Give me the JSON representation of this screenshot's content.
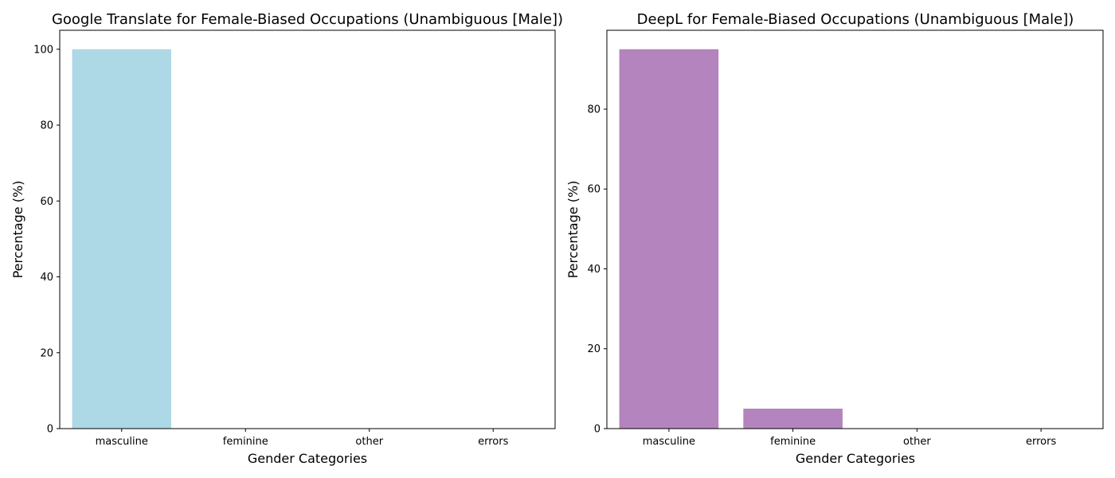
{
  "chart_data": [
    {
      "type": "bar",
      "title": "Google Translate for Female-Biased Occupations (Unambiguous [Male])",
      "xlabel": "Gender Categories",
      "ylabel": "Percentage (%)",
      "categories": [
        "masculine",
        "feminine",
        "other",
        "errors"
      ],
      "values": [
        100,
        0,
        0,
        0
      ],
      "ylim": [
        0,
        105
      ],
      "yticks": [
        0,
        20,
        40,
        60,
        80,
        100
      ],
      "bar_color": "#add8e6",
      "grid": false
    },
    {
      "type": "bar",
      "title": "DeepL for Female-Biased Occupations (Unambiguous [Male])",
      "xlabel": "Gender Categories",
      "ylabel": "Percentage (%)",
      "categories": [
        "masculine",
        "feminine",
        "other",
        "errors"
      ],
      "values": [
        95,
        5,
        0,
        0
      ],
      "ylim": [
        0,
        99.75
      ],
      "yticks": [
        0,
        20,
        40,
        60,
        80
      ],
      "bar_color": "#b384bd",
      "grid": false
    }
  ]
}
